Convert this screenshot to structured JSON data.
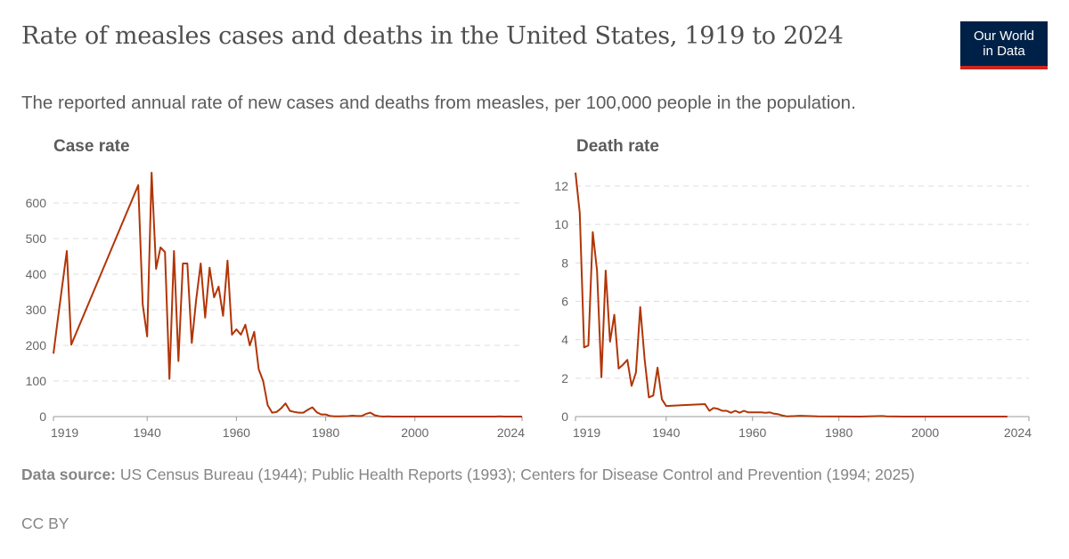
{
  "header": {
    "title": "Rate of measles cases and deaths in the United States, 1919 to 2024",
    "subtitle": "The reported annual rate of new cases and deaths from measles, per 100,000 people in the population.",
    "logo_line1": "Our World",
    "logo_line2": "in Data"
  },
  "colors": {
    "line": "#b13507",
    "logo_bg": "#002147",
    "logo_accent": "#ce261e",
    "grid": "#dddddd"
  },
  "chart_data": [
    {
      "type": "line",
      "title": "Case rate",
      "xlabel": "",
      "ylabel": "",
      "xlim": [
        1919,
        2024
      ],
      "ylim": [
        0,
        700
      ],
      "x_ticks": [
        1919,
        1940,
        1960,
        1980,
        2000,
        2024
      ],
      "y_ticks": [
        0,
        100,
        200,
        300,
        400,
        500,
        600
      ],
      "grid": true,
      "series": [
        {
          "name": "Case rate",
          "x": [
            1919,
            1920,
            1922,
            1923,
            1938,
            1939,
            1940,
            1941,
            1942,
            1943,
            1944,
            1945,
            1946,
            1947,
            1948,
            1949,
            1950,
            1951,
            1952,
            1953,
            1954,
            1955,
            1956,
            1957,
            1958,
            1959,
            1960,
            1961,
            1962,
            1963,
            1964,
            1965,
            1966,
            1967,
            1968,
            1969,
            1970,
            1971,
            1972,
            1973,
            1974,
            1975,
            1976,
            1977,
            1978,
            1979,
            1980,
            1981,
            1982,
            1983,
            1984,
            1985,
            1986,
            1987,
            1988,
            1989,
            1990,
            1991,
            1992,
            1993,
            1994,
            1995,
            2000,
            2005,
            2010,
            2015,
            2018,
            2019,
            2020,
            2024
          ],
          "y": [
            177,
            275,
            465,
            202,
            650,
            315,
            225,
            685,
            415,
            475,
            462,
            106,
            465,
            156,
            430,
            430,
            207,
            330,
            430,
            278,
            418,
            335,
            365,
            283,
            438,
            230,
            245,
            230,
            258,
            200,
            238,
            133,
            100,
            32,
            11,
            13,
            23,
            37,
            16,
            13,
            11,
            11,
            19,
            26,
            12,
            6,
            6,
            1.4,
            0.7,
            0.6,
            1.1,
            1.2,
            2.6,
            1.5,
            1.4,
            7.3,
            11,
            3.8,
            0.9,
            0.1,
            0.4,
            0.1,
            0.03,
            0.02,
            0.02,
            0.06,
            0.1,
            0.39,
            0.004,
            0.08
          ]
        }
      ]
    },
    {
      "type": "line",
      "title": "Death rate",
      "xlabel": "",
      "ylabel": "",
      "xlim": [
        1919,
        2024
      ],
      "ylim": [
        0,
        13
      ],
      "x_ticks": [
        1919,
        1940,
        1960,
        1980,
        2000,
        2024
      ],
      "y_ticks": [
        0,
        2,
        4,
        6,
        8,
        10,
        12
      ],
      "grid": true,
      "series": [
        {
          "name": "Death rate",
          "x": [
            1919,
            1920,
            1921,
            1922,
            1923,
            1924,
            1925,
            1926,
            1927,
            1928,
            1929,
            1930,
            1931,
            1932,
            1933,
            1934,
            1935,
            1936,
            1937,
            1938,
            1939,
            1940,
            1949,
            1950,
            1951,
            1952,
            1953,
            1954,
            1955,
            1956,
            1957,
            1958,
            1959,
            1960,
            1961,
            1962,
            1963,
            1964,
            1965,
            1966,
            1967,
            1968,
            1970,
            1971,
            1975,
            1980,
            1985,
            1990,
            1991,
            1995,
            2000,
            2010,
            2019
          ],
          "y": [
            12.7,
            10.6,
            3.6,
            3.7,
            9.6,
            7.6,
            2.05,
            7.6,
            3.9,
            5.3,
            2.5,
            2.7,
            2.95,
            1.6,
            2.3,
            5.7,
            3.0,
            1.0,
            1.1,
            2.55,
            0.9,
            0.55,
            0.65,
            0.3,
            0.45,
            0.4,
            0.3,
            0.3,
            0.2,
            0.3,
            0.2,
            0.3,
            0.22,
            0.22,
            0.22,
            0.22,
            0.2,
            0.22,
            0.15,
            0.12,
            0.05,
            0.01,
            0.03,
            0.04,
            0.01,
            0.005,
            0.001,
            0.03,
            0.01,
            0.002,
            0,
            0,
            0
          ]
        }
      ]
    }
  ],
  "footer": {
    "source_label": "Data source:",
    "source_text": " US Census Bureau (1944); Public Health Reports (1993); Centers for Disease Control and Prevention (1994; 2025)",
    "license": "CC BY"
  }
}
